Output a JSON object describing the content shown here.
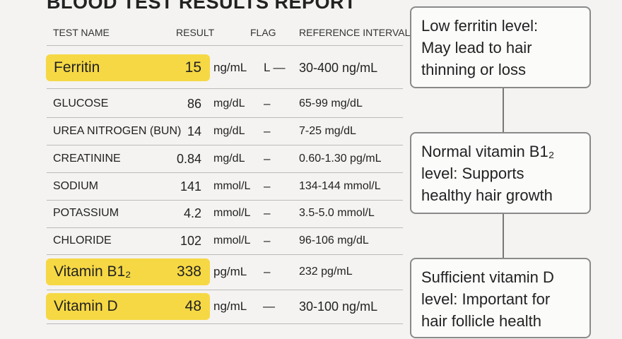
{
  "header": {
    "title": "BLOOD TEST RESULTS REPORT"
  },
  "table": {
    "columns": [
      "TEST NAME",
      "RESULT",
      "FLAG",
      "REFERENCE INTERVAL"
    ],
    "rows": [
      {
        "name": "Ferritin",
        "result": 15,
        "unit": "ng/mL",
        "flag": "L —",
        "reference": "30-400 ng/mL",
        "highlight": true
      },
      {
        "name": "GLUCOSE",
        "result": 86,
        "unit": "mg/dL",
        "flag": "–",
        "reference": "65-99 mg/dL",
        "highlight": false
      },
      {
        "name": "UREA NITROGEN (BUN)",
        "result": 14,
        "unit": "mg/dL",
        "flag": "–",
        "reference": "7-25 mg/dL",
        "highlight": false
      },
      {
        "name": "CREATININE",
        "result": 0.84,
        "unit": "mg/dL",
        "flag": "–",
        "reference": "0.60-1.30 pg/mL",
        "highlight": false
      },
      {
        "name": "SODIUM",
        "result": 141,
        "unit": "mmol/L",
        "flag": "–",
        "reference": "134-144 mmol/L",
        "highlight": false
      },
      {
        "name": "POTASSIUM",
        "result": 4.2,
        "unit": "mmol/L",
        "flag": "–",
        "reference": "3.5-5.0 mmol/L",
        "highlight": false
      },
      {
        "name": "CHLORIDE",
        "result": 102,
        "unit": "mmol/L",
        "flag": "–",
        "reference": "96-106 mg/dL",
        "highlight": false
      },
      {
        "name": "Vitamin B1₂",
        "result": 338,
        "unit": "pg/mL",
        "flag": "–",
        "reference": "232 pg/mL",
        "highlight": true
      },
      {
        "name": "Vitamin D",
        "result": 48,
        "unit": "ng/mL",
        "flag": "—",
        "reference": "30-100 ng/mL",
        "highlight": true
      }
    ]
  },
  "callouts": [
    {
      "lines": [
        "Low ferritin level:",
        "May lead to hair",
        "thinning or loss"
      ]
    },
    {
      "lines": [
        "Normal vitamin B1₂",
        "level: Supports",
        "healthy hair growth"
      ]
    },
    {
      "lines": [
        "Sufficient vitamin D",
        "level: Important for",
        "hair follicle health"
      ]
    }
  ]
}
